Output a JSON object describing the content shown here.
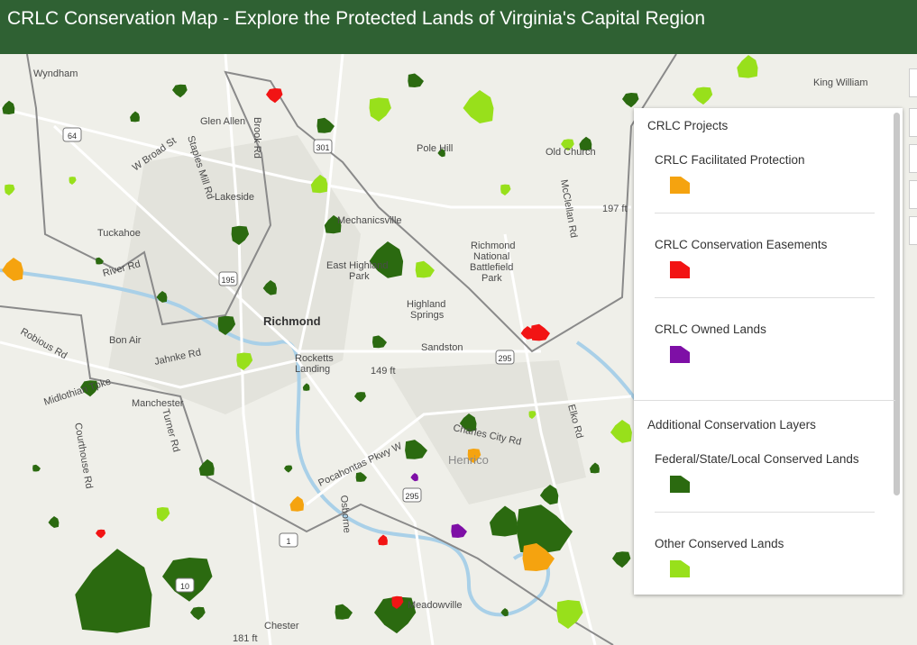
{
  "header": {
    "title": "CRLC Conservation Map - Explore the Protected Lands of Virginia's Capital Region"
  },
  "map": {
    "labels": [
      "Wyndham",
      "Glen Allen",
      "Brook Rd",
      "Staples Mill Rd",
      "W Broad St",
      "Lakeside",
      "Tuckahoe",
      "River Rd",
      "Mechanicsville",
      "East Highland",
      "Park",
      "Richmond",
      "Bon Air",
      "Rocketts",
      "Landing",
      "Highland",
      "Springs",
      "Sandston",
      "Richmond",
      "National",
      "Battlefield",
      "Park",
      "Midlothian Tpke",
      "Manchester",
      "Jahnke Rd",
      "Courthouse Rd",
      "Turner Rd",
      "Pocahontas Pkwy W",
      "Henrico",
      "Charles City Rd",
      "Elko Rd",
      "Meadowville",
      "Chester",
      "King William",
      "Old Church",
      "McClellan Rd",
      "Pole Hill",
      "149 ft",
      "197 ft",
      "181 ft",
      "Robious Rd",
      "Osborne"
    ],
    "shields": [
      "64",
      "301",
      "195",
      "295",
      "295",
      "1",
      "10"
    ]
  },
  "legend": {
    "sections": [
      {
        "title": "CRLC Projects",
        "items": [
          {
            "label": "CRLC Facilitated Protection",
            "color": "#f5a30f"
          },
          {
            "label": "CRLC Conservation Easements",
            "color": "#f21414"
          },
          {
            "label": "CRLC Owned Lands",
            "color": "#7e0fa6"
          }
        ]
      },
      {
        "title": "Additional Conservation Layers",
        "items": [
          {
            "label": "Federal/State/Local Conserved Lands",
            "color": "#2b6a10"
          },
          {
            "label": "Other Conserved Lands",
            "color": "#98e01b"
          }
        ]
      }
    ]
  }
}
